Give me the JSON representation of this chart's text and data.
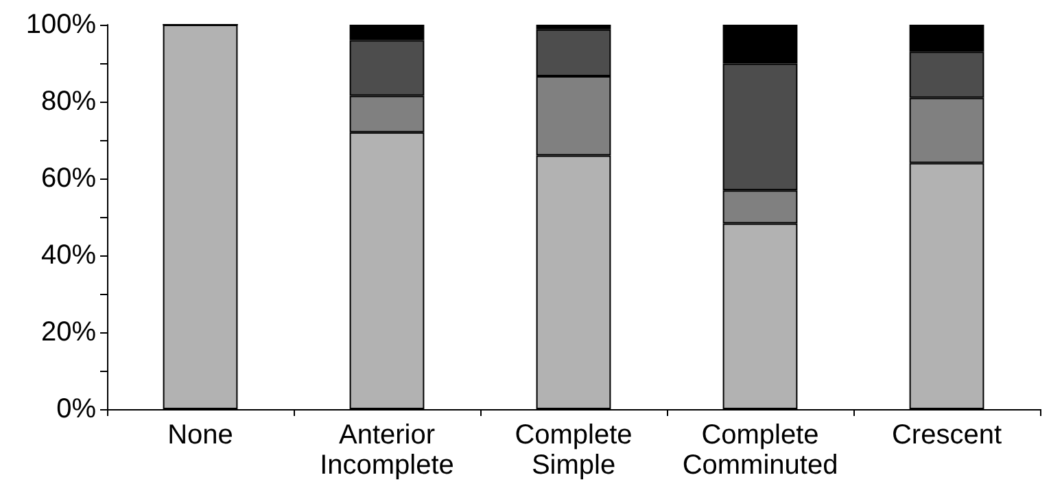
{
  "chart_data": {
    "type": "bar",
    "stacked": true,
    "categories": [
      "None",
      "Anterior\nIncomplete",
      "Complete\nSimple",
      "Complete\nComminuted",
      "Crescent"
    ],
    "series": [
      {
        "color": "#b2b2b2",
        "values": [
          100,
          72,
          66,
          48.3,
          64
        ]
      },
      {
        "color": "#808080",
        "values": [
          0,
          9.5,
          20.6,
          8.6,
          17
        ]
      },
      {
        "color": "#4d4d4d",
        "values": [
          0,
          14.5,
          12.2,
          33,
          12
        ]
      },
      {
        "color": "#000000",
        "values": [
          0,
          4,
          1.2,
          10.1,
          7
        ]
      }
    ],
    "ylim": [
      0,
      100
    ],
    "yticks": [
      {
        "value": 0,
        "label": "0%"
      },
      {
        "value": 10,
        "label": null
      },
      {
        "value": 20,
        "label": "20%"
      },
      {
        "value": 30,
        "label": null
      },
      {
        "value": 40,
        "label": "40%"
      },
      {
        "value": 50,
        "label": null
      },
      {
        "value": 60,
        "label": "60%"
      },
      {
        "value": 70,
        "label": null
      },
      {
        "value": 80,
        "label": "80%"
      },
      {
        "value": 90,
        "label": null
      },
      {
        "value": 100,
        "label": "100%"
      }
    ],
    "grid": false
  }
}
